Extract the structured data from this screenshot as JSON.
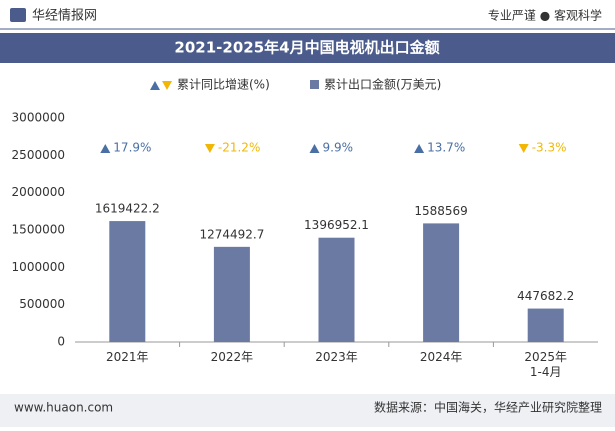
{
  "header": {
    "logo": "华经情报网",
    "slogan": "专业严谨 ● 客观科学"
  },
  "chart_data": {
    "type": "bar",
    "title": "2021-2025年4月中国电视机出口金额",
    "categories": [
      "2021年",
      "2022年",
      "2023年",
      "2024年",
      "2025年\n1-4月"
    ],
    "series": [
      {
        "name": "累计同比增速(%)",
        "values": [
          17.9,
          -21.2,
          9.9,
          13.7,
          -3.3
        ],
        "value_labels": [
          "17.9%",
          "-21.2%",
          "9.9%",
          "13.7%",
          "-3.3%"
        ],
        "color": "#4a6fa5",
        "down_color": "#f2b705"
      },
      {
        "name": "累计出口金额(万美元)",
        "values": [
          1619422.2,
          1274492.7,
          1396952.1,
          1588569,
          447682.2
        ],
        "color": "#6b7aa3"
      }
    ],
    "ylim": [
      0,
      3000000
    ],
    "yticks": [
      0,
      500000,
      1000000,
      1500000,
      2000000,
      2500000,
      3000000
    ],
    "grid": false
  },
  "footer": {
    "site": "www.huaon.com",
    "source": "数据来源：中国海关，华经产业研究院整理"
  }
}
